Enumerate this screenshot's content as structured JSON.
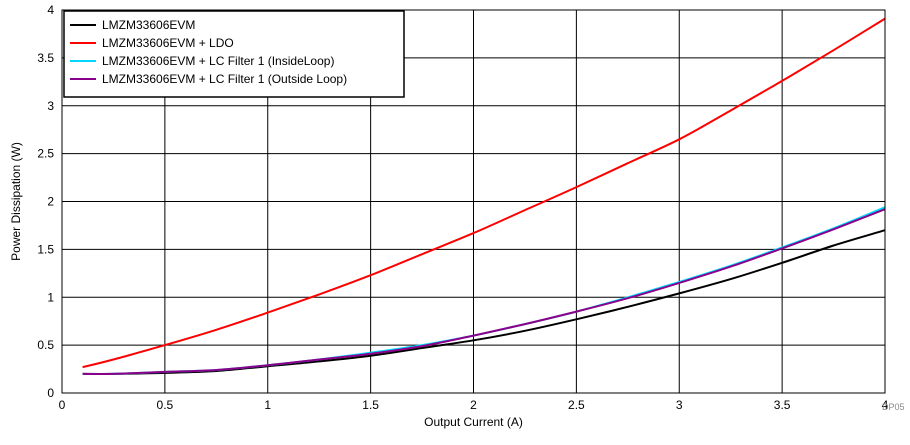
{
  "chart_data": {
    "type": "line",
    "xlabel": "Output Current (A)",
    "ylabel": "Power Dissipation (W)",
    "xlim": [
      0,
      4
    ],
    "ylim": [
      0,
      4
    ],
    "xticks": [
      "0",
      "0.5",
      "1",
      "1.5",
      "2",
      "2.5",
      "3",
      "3.5",
      "4"
    ],
    "yticks": [
      "0",
      "0.5",
      "1",
      "1.5",
      "2",
      "2.5",
      "3",
      "3.5",
      "4"
    ],
    "grid": true,
    "legend_position": "top-left",
    "footnote": "DP05",
    "series": [
      {
        "name": "LMZM33606EVM",
        "color": "#000000",
        "x": [
          0.1,
          0.25,
          0.5,
          0.75,
          1.0,
          1.25,
          1.5,
          1.75,
          2.0,
          2.25,
          2.5,
          2.75,
          3.0,
          3.25,
          3.5,
          3.75,
          4.0
        ],
        "y": [
          0.2,
          0.2,
          0.21,
          0.23,
          0.28,
          0.33,
          0.39,
          0.47,
          0.55,
          0.65,
          0.77,
          0.9,
          1.04,
          1.19,
          1.36,
          1.54,
          1.7
        ]
      },
      {
        "name": "LMZM33606EVM + LDO",
        "color": "#ff0000",
        "x": [
          0.1,
          0.25,
          0.5,
          0.75,
          1.0,
          1.25,
          1.5,
          1.75,
          2.0,
          2.25,
          2.5,
          2.75,
          3.0,
          3.25,
          3.5,
          3.75,
          4.0
        ],
        "y": [
          0.27,
          0.35,
          0.5,
          0.66,
          0.84,
          1.03,
          1.23,
          1.45,
          1.67,
          1.91,
          2.15,
          2.4,
          2.65,
          2.95,
          3.26,
          3.58,
          3.91
        ]
      },
      {
        "name": "LMZM33606EVM + LC Filter 1 (InsideLoop)",
        "color": "#00d8ff",
        "x": [
          0.1,
          0.25,
          0.5,
          0.75,
          1.0,
          1.25,
          1.5,
          1.75,
          2.0,
          2.25,
          2.5,
          2.75,
          3.0,
          3.25,
          3.5,
          3.75,
          4.0
        ],
        "y": [
          0.2,
          0.2,
          0.22,
          0.24,
          0.29,
          0.35,
          0.42,
          0.5,
          0.6,
          0.72,
          0.85,
          1.0,
          1.16,
          1.33,
          1.52,
          1.72,
          1.94
        ]
      },
      {
        "name": "LMZM33606EVM + LC Filter 1 (Outside Loop)",
        "color": "#8b008b",
        "x": [
          0.1,
          0.25,
          0.5,
          0.75,
          1.0,
          1.25,
          1.5,
          1.75,
          2.0,
          2.25,
          2.5,
          2.75,
          3.0,
          3.25,
          3.5,
          3.75,
          4.0
        ],
        "y": [
          0.2,
          0.2,
          0.22,
          0.24,
          0.29,
          0.35,
          0.41,
          0.49,
          0.6,
          0.72,
          0.85,
          0.99,
          1.15,
          1.32,
          1.51,
          1.71,
          1.92
        ]
      }
    ]
  }
}
